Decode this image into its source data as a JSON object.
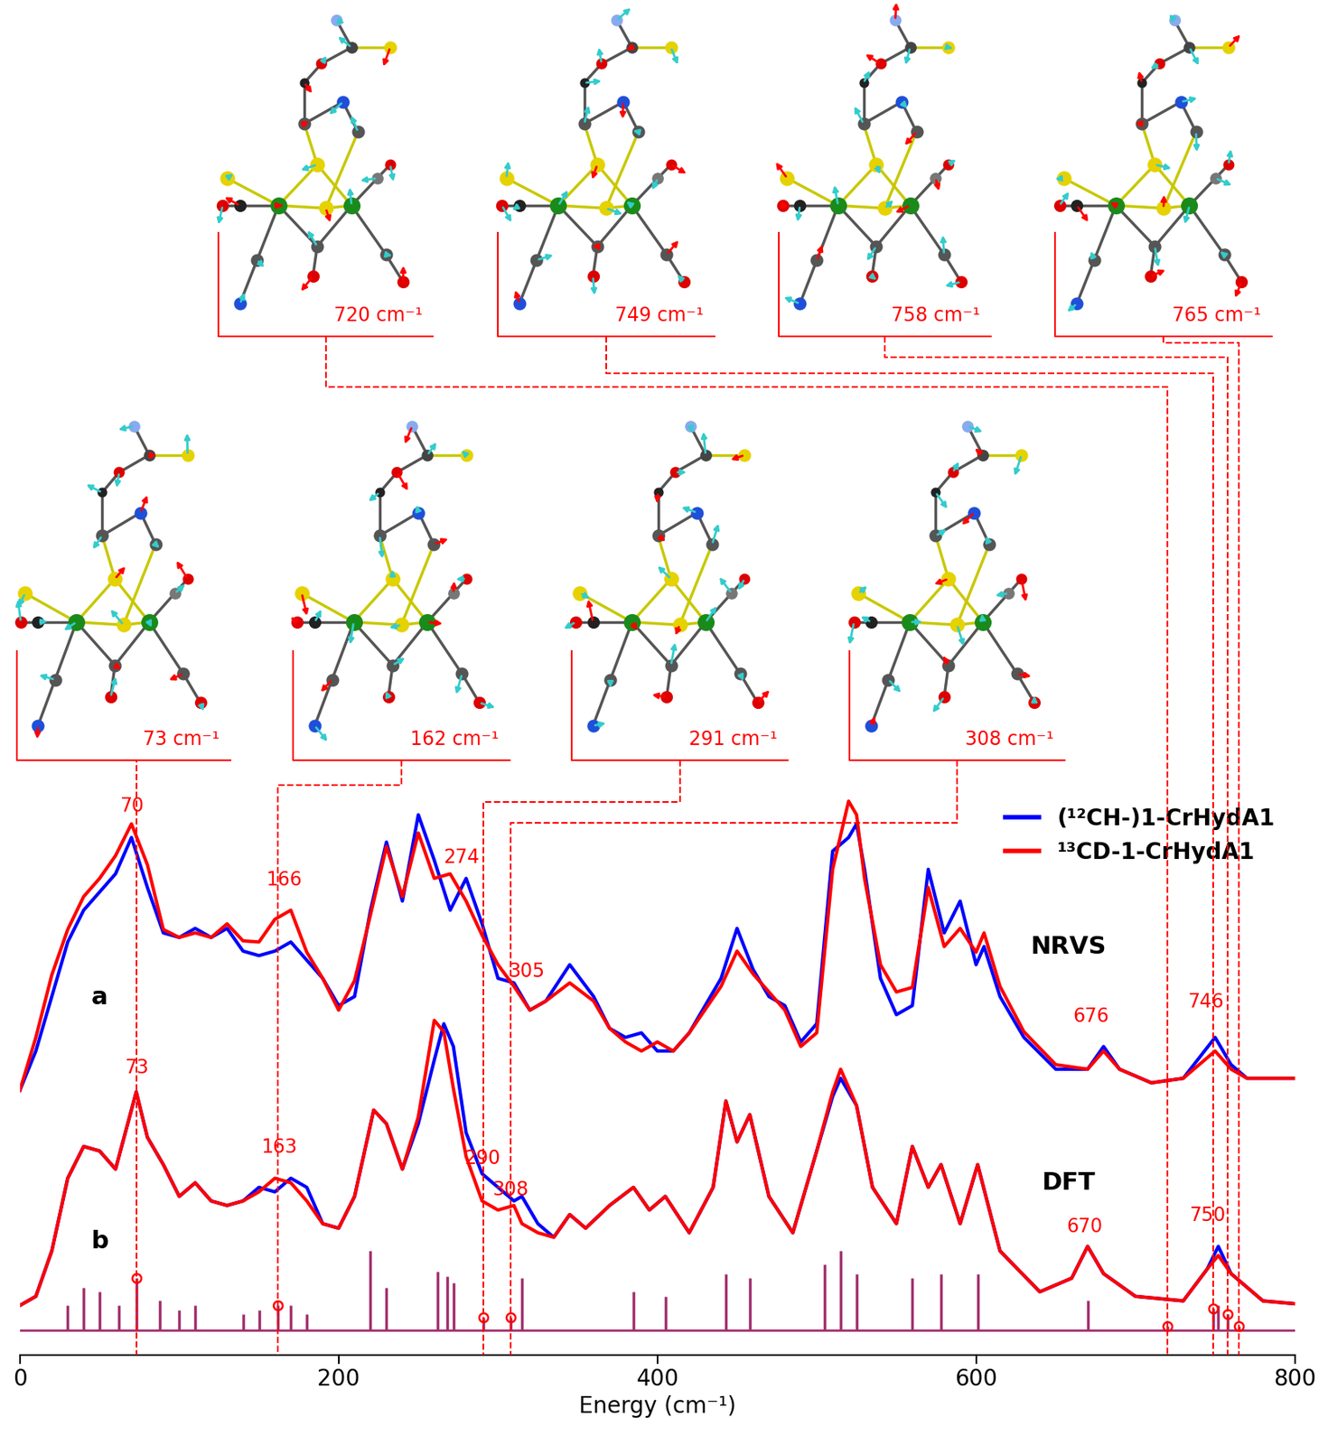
{
  "chart_data": {
    "type": "line",
    "xlabel": "Energy (cm⁻¹)",
    "xlim": [
      0,
      800
    ],
    "xticks": [
      0,
      200,
      400,
      600,
      800
    ],
    "ylim": [
      0,
      100
    ],
    "tick_labels": "x",
    "legend": "upper right",
    "series": [
      {
        "name": "(¹²CH-)1-CrHydA1",
        "color": "#0000ff",
        "x": [
          0,
          10,
          20,
          30,
          40,
          50,
          60,
          70,
          80,
          90,
          100,
          110,
          120,
          130,
          140,
          150,
          160,
          170,
          180,
          190,
          200,
          210,
          220,
          230,
          240,
          250,
          260,
          270,
          280,
          290,
          300,
          310,
          320,
          330,
          345,
          360,
          370,
          380,
          390,
          400,
          410,
          420,
          440,
          450,
          460,
          470,
          480,
          490,
          500,
          510,
          520,
          525,
          530,
          540,
          550,
          560,
          570,
          580,
          590,
          600,
          605,
          615,
          630,
          650,
          670,
          680,
          690,
          710,
          730,
          750,
          760,
          770,
          790,
          800
        ],
        "values": [
          46.7,
          53.6,
          63.2,
          72.8,
          78.4,
          81.6,
          84.8,
          91.2,
          82.4,
          74.4,
          73.6,
          75.2,
          73.6,
          75.2,
          71.2,
          70.4,
          71.2,
          72.8,
          69.6,
          66.4,
          61.6,
          63.2,
          78.4,
          90.4,
          80,
          95.2,
          87.2,
          78.4,
          84,
          76,
          66.4,
          65.6,
          60.8,
          62.4,
          68.8,
          63.2,
          57.6,
          56,
          56.8,
          53.6,
          53.6,
          56.8,
          66.4,
          75.2,
          68,
          63.2,
          61.6,
          55.2,
          58.4,
          88.8,
          91.2,
          93.6,
          85.6,
          66.4,
          60,
          61.6,
          85.6,
          74.4,
          80,
          68.8,
          72,
          63.2,
          56,
          50.4,
          50.4,
          54.4,
          50.4,
          48,
          48.8,
          56,
          51.2,
          48.8,
          48.8,
          48.8
        ]
      },
      {
        "name": "¹³CD-1-CrHydA1",
        "color": "#ff0000",
        "x": [
          0,
          10,
          20,
          30,
          40,
          50,
          60,
          70,
          80,
          90,
          100,
          110,
          120,
          130,
          140,
          150,
          160,
          170,
          180,
          190,
          200,
          210,
          220,
          230,
          240,
          250,
          260,
          270,
          280,
          290,
          300,
          310,
          320,
          330,
          345,
          360,
          370,
          380,
          390,
          400,
          410,
          420,
          440,
          450,
          460,
          470,
          480,
          490,
          500,
          510,
          520,
          525,
          530,
          540,
          550,
          560,
          570,
          580,
          590,
          600,
          605,
          615,
          630,
          650,
          670,
          680,
          690,
          710,
          730,
          750,
          760,
          770,
          790,
          800
        ],
        "values": [
          46.7,
          56,
          67,
          75,
          80.8,
          84,
          88,
          93.6,
          86.4,
          75,
          73.6,
          74.4,
          73.6,
          76,
          73,
          72.8,
          76.8,
          78.4,
          71,
          66.4,
          60.8,
          66,
          77.6,
          89.6,
          80.8,
          92,
          84,
          84.8,
          80,
          74,
          68.8,
          65,
          60.8,
          62.4,
          65.6,
          62.4,
          57.6,
          55.2,
          53.6,
          55.2,
          53.6,
          56.8,
          65,
          71.2,
          67.2,
          64,
          60.8,
          54.4,
          56.8,
          85.6,
          97.6,
          95.2,
          84,
          68.8,
          64,
          64.8,
          82.4,
          72,
          75.2,
          71,
          74.4,
          65,
          57,
          51.2,
          50.4,
          53.6,
          50.4,
          48,
          48.8,
          53.6,
          50.4,
          48.8,
          48.8,
          48.8
        ]
      },
      {
        "name": "(¹²CH-)1-CrHydA1",
        "color": "#0000ff",
        "x": [
          0,
          10,
          20,
          30,
          40,
          50,
          60,
          73,
          80,
          90,
          100,
          110,
          120,
          130,
          140,
          150,
          160,
          170,
          180,
          190,
          200,
          210,
          222,
          230,
          240,
          250,
          260,
          266,
          272,
          280,
          290,
          300,
          310,
          315,
          325,
          335,
          345,
          355,
          370,
          385,
          395,
          405,
          420,
          435,
          443,
          450,
          458,
          470,
          485,
          500,
          510,
          515,
          525,
          535,
          550,
          560,
          570,
          578,
          590,
          601,
          615,
          640,
          660,
          670,
          680,
          700,
          730,
          745,
          752,
          760,
          780,
          800
        ],
        "values": [
          8.8,
          10.4,
          18.4,
          31.2,
          36.8,
          36,
          32.8,
          46.4,
          38.4,
          33.6,
          28,
          30.4,
          27.2,
          26.4,
          27.2,
          29.6,
          28.8,
          31.2,
          29.6,
          23.2,
          22.4,
          28,
          43.2,
          40.8,
          32.8,
          40.8,
          52,
          58.4,
          54.4,
          39.2,
          32,
          29.6,
          27.2,
          28,
          23.2,
          20.8,
          24.8,
          22.4,
          26.4,
          29.6,
          25.6,
          28,
          21.6,
          29.6,
          44.8,
          37.6,
          42.4,
          28,
          21.6,
          36,
          45.6,
          48.8,
          44,
          29.6,
          23.2,
          36.8,
          29.6,
          33.6,
          23.2,
          33.6,
          18.4,
          11.2,
          13.6,
          19.2,
          14.4,
          10.4,
          9.6,
          15.2,
          19.2,
          14.4,
          9.6,
          9.1
        ]
      },
      {
        "name": "¹³CD-1-CrHydA1",
        "color": "#ff0000",
        "x": [
          0,
          10,
          20,
          30,
          40,
          50,
          60,
          73,
          80,
          90,
          100,
          110,
          120,
          130,
          140,
          150,
          160,
          170,
          180,
          190,
          200,
          210,
          222,
          230,
          240,
          250,
          260,
          266,
          272,
          280,
          290,
          300,
          310,
          315,
          325,
          335,
          345,
          355,
          370,
          385,
          395,
          405,
          420,
          435,
          443,
          450,
          458,
          470,
          485,
          500,
          510,
          515,
          525,
          535,
          550,
          560,
          570,
          578,
          590,
          601,
          615,
          640,
          660,
          670,
          680,
          700,
          730,
          745,
          752,
          760,
          780,
          800
        ],
        "values": [
          8.8,
          10.4,
          18.4,
          31.2,
          36.8,
          36,
          32.8,
          46.4,
          38.4,
          33.6,
          28,
          30.4,
          27.2,
          26.4,
          27.2,
          28.8,
          31.2,
          30.4,
          27.2,
          23.2,
          22.4,
          28,
          43.2,
          40.8,
          32.8,
          42,
          59,
          57,
          47,
          35,
          27.2,
          25.6,
          26.4,
          23.2,
          21.6,
          20.8,
          24.8,
          22.4,
          26.4,
          29.6,
          25.6,
          28,
          21.6,
          29.6,
          44.8,
          37.6,
          42.4,
          28,
          21.6,
          36,
          46.4,
          50.4,
          44,
          29.6,
          23.2,
          36.8,
          29.6,
          33.6,
          23.2,
          33.6,
          18.4,
          11.2,
          13.6,
          19.2,
          14.4,
          10.4,
          9.6,
          15.2,
          17.6,
          14.4,
          9.6,
          9.1
        ]
      }
    ],
    "sticks": {
      "type": "bar",
      "color": "#a3306f",
      "baseline": 4.5,
      "x": [
        30,
        40,
        50,
        62,
        73,
        88,
        100,
        110,
        140,
        150,
        162,
        170,
        180,
        220,
        230,
        262,
        268,
        272,
        291,
        308,
        315,
        385,
        405,
        443,
        458,
        505,
        515,
        525,
        560,
        578,
        601,
        670,
        720,
        749,
        752,
        758,
        765
      ],
      "values": [
        8.8,
        12,
        11.2,
        8.8,
        13.6,
        9.6,
        8,
        8.8,
        7.2,
        8,
        8.8,
        8.8,
        7.2,
        18.4,
        12,
        14.7,
        13.9,
        12.8,
        6.7,
        6.7,
        13.6,
        11.2,
        10.4,
        14.4,
        13.6,
        16,
        18.4,
        14.4,
        13.6,
        14.4,
        14.4,
        9.6,
        5.1,
        8.3,
        8.8,
        7.2,
        5.1
      ]
    },
    "marked_modes": {
      "type": "scatter",
      "marker": "o",
      "color": "#ff0000",
      "x": [
        73,
        162,
        291,
        308,
        720,
        749,
        758,
        765
      ],
      "values": [
        13.6,
        8.8,
        6.7,
        6.7,
        5.1,
        8.3,
        7.2,
        5.1
      ]
    },
    "annotations": [
      {
        "text": "70",
        "x": 70,
        "y": 95
      },
      {
        "text": "166",
        "x": 166,
        "y": 82
      },
      {
        "text": "274",
        "x": 277,
        "y": 86
      },
      {
        "text": "305",
        "x": 318,
        "y": 66
      },
      {
        "text": "676",
        "x": 672,
        "y": 58
      },
      {
        "text": "746",
        "x": 744,
        "y": 60.5
      },
      {
        "text": "73",
        "x": 73,
        "y": 49
      },
      {
        "text": "163",
        "x": 163,
        "y": 35
      },
      {
        "text": "290",
        "x": 290,
        "y": 33
      },
      {
        "text": "308",
        "x": 308,
        "y": 27.5
      },
      {
        "text": "670",
        "x": 668,
        "y": 21
      },
      {
        "text": "750",
        "x": 745,
        "y": 23
      }
    ],
    "panel_labels": [
      {
        "text": "a",
        "x": 50,
        "y": 63
      },
      {
        "text": "NRVS",
        "x": 658,
        "y": 72
      },
      {
        "text": "b",
        "x": 50,
        "y": 20
      },
      {
        "text": "DFT",
        "x": 658,
        "y": 30.4
      }
    ],
    "insets": [
      {
        "frequency": 720,
        "label": "720 cm⁻¹"
      },
      {
        "frequency": 749,
        "label": "749 cm⁻¹"
      },
      {
        "frequency": 758,
        "label": "758 cm⁻¹"
      },
      {
        "frequency": 765,
        "label": "765 cm⁻¹"
      },
      {
        "frequency": 73,
        "label": "73 cm⁻¹"
      },
      {
        "frequency": 162,
        "label": "162 cm⁻¹"
      },
      {
        "frequency": 291,
        "label": "291 cm⁻¹"
      },
      {
        "frequency": 308,
        "label": "308 cm⁻¹"
      }
    ]
  }
}
